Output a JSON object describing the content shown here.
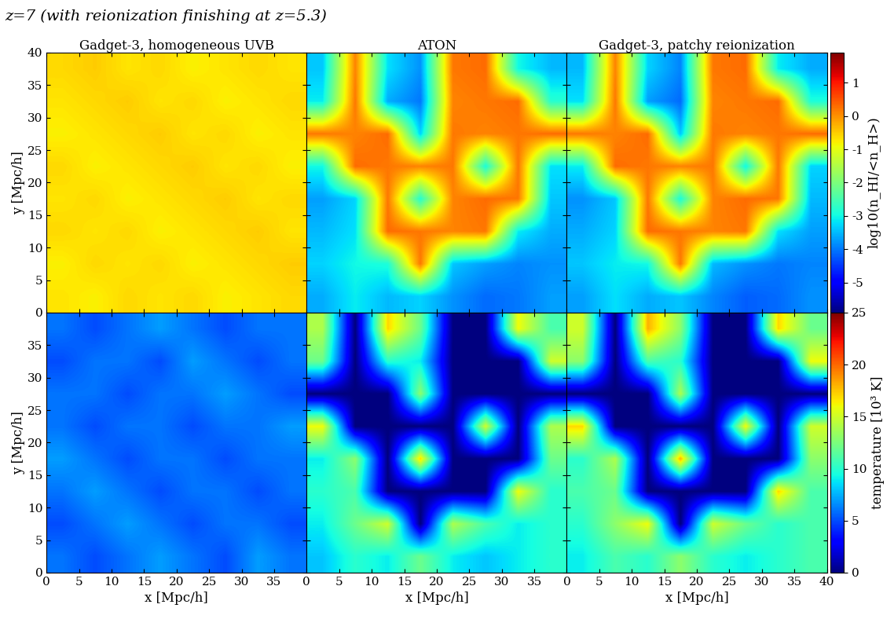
{
  "figure_title": "z=7 (with reionization finishing at z=5.3)",
  "chart_data": [
    {
      "type": "heatmap",
      "title": "Gadget-3, homogeneous UVB",
      "ylabel": "y [Mpc/h]",
      "xlim": [
        0,
        40
      ],
      "ylim": [
        0,
        40
      ],
      "xticks": [
        0,
        5,
        10,
        15,
        20,
        25,
        30,
        35
      ],
      "yticks": [
        0,
        5,
        10,
        15,
        20,
        25,
        30,
        35,
        40
      ],
      "tick_labels": "y",
      "colorbar_range": [
        -5.9,
        1.9
      ],
      "cells": [
        [
          -0.6,
          -0.5,
          -0.7,
          -0.6,
          -0.8,
          -0.7,
          -0.6,
          -0.7
        ],
        [
          -0.7,
          -0.6,
          -0.5,
          -0.7,
          -0.6,
          -0.8,
          -0.7,
          -0.6
        ],
        [
          -0.8,
          -0.7,
          -0.6,
          -0.5,
          -0.7,
          -0.6,
          -0.8,
          -0.7
        ],
        [
          -0.6,
          -0.8,
          -0.7,
          -0.6,
          -0.5,
          -0.7,
          -0.6,
          -0.8
        ],
        [
          -0.7,
          -0.6,
          -0.8,
          -0.7,
          -0.6,
          -0.5,
          -0.7,
          -0.6
        ],
        [
          -0.6,
          -0.7,
          -0.6,
          -0.8,
          -0.7,
          -0.6,
          -0.5,
          -0.7
        ],
        [
          -0.8,
          -0.6,
          -0.7,
          -0.6,
          -0.8,
          -0.7,
          -0.6,
          -0.5
        ],
        [
          -0.7,
          -0.8,
          -0.6,
          -0.7,
          -0.6,
          -0.8,
          -0.7,
          -0.6
        ]
      ]
    },
    {
      "type": "heatmap",
      "title": "ATON",
      "xlim": [
        0,
        40
      ],
      "ylim": [
        0,
        40
      ],
      "xticks": [
        0,
        5,
        10,
        15,
        20,
        25,
        30,
        35
      ],
      "yticks": [
        0,
        5,
        10,
        15,
        20,
        25,
        30,
        35,
        40
      ],
      "tick_labels": false,
      "colorbar_range": [
        -5.9,
        1.9
      ],
      "cells": [
        [
          -3.4,
          0.1,
          -3.2,
          -3.8,
          0.2,
          0.3,
          -3.0,
          -3.5
        ],
        [
          -3.1,
          0.2,
          -3.6,
          -4.0,
          0.1,
          0.2,
          0.3,
          -2.8
        ],
        [
          0.2,
          0.1,
          0.3,
          -3.3,
          0.2,
          0.1,
          0.2,
          0.3
        ],
        [
          -3.0,
          0.3,
          0.2,
          0.1,
          0.2,
          -2.9,
          0.2,
          -3.2
        ],
        [
          -3.7,
          -3.3,
          0.2,
          -2.8,
          0.1,
          0.3,
          0.2,
          -3.4
        ],
        [
          -3.5,
          -3.2,
          0.3,
          0.2,
          0.1,
          0.2,
          -3.1,
          -3.6
        ],
        [
          -3.3,
          -3.0,
          -2.9,
          0.2,
          -3.4,
          -3.7,
          -3.9,
          -3.8
        ],
        [
          -3.6,
          -3.1,
          -3.5,
          -3.3,
          -3.8,
          -4.1,
          -4.0,
          -3.7
        ]
      ]
    },
    {
      "type": "heatmap",
      "title": "Gadget-3, patchy reionization",
      "xlim": [
        0,
        40
      ],
      "ylim": [
        0,
        40
      ],
      "xticks": [
        0,
        5,
        10,
        15,
        20,
        25,
        30,
        35,
        40
      ],
      "yticks": [
        0,
        5,
        10,
        15,
        20,
        25,
        30,
        35,
        40
      ],
      "tick_labels": false,
      "colorbar_range": [
        -5.9,
        1.9
      ],
      "colorbar_label": "log10(n_HI/<n_H>)",
      "colorbar_ticks": [
        1,
        0,
        -1,
        -2,
        -3,
        -4,
        -5
      ],
      "cells": [
        [
          -3.5,
          0.1,
          -3.3,
          -3.9,
          0.2,
          0.3,
          -3.1,
          -3.6
        ],
        [
          -3.2,
          0.2,
          -3.7,
          -4.1,
          0.1,
          0.2,
          0.3,
          -2.9
        ],
        [
          0.2,
          0.1,
          0.3,
          -3.4,
          0.2,
          0.1,
          0.2,
          0.3
        ],
        [
          -3.1,
          0.3,
          0.2,
          0.1,
          0.2,
          -3.0,
          0.2,
          -3.3
        ],
        [
          -3.8,
          -3.4,
          0.2,
          -2.9,
          0.1,
          0.3,
          0.2,
          -3.5
        ],
        [
          -3.6,
          -3.3,
          0.3,
          0.2,
          0.1,
          0.2,
          -3.2,
          -3.7
        ],
        [
          -3.4,
          -3.1,
          -3.0,
          0.2,
          -3.5,
          -3.8,
          -4.0,
          -3.9
        ],
        [
          -3.7,
          -3.2,
          -3.6,
          -3.4,
          -3.9,
          -4.2,
          -4.1,
          -3.8
        ]
      ]
    },
    {
      "type": "heatmap",
      "xlabel": "x [Mpc/h]",
      "ylabel": "y [Mpc/h]",
      "xlim": [
        0,
        40
      ],
      "ylim": [
        0,
        40
      ],
      "xticks": [
        0,
        5,
        10,
        15,
        20,
        25,
        30,
        35
      ],
      "yticks": [
        0,
        5,
        10,
        15,
        20,
        25,
        30,
        35
      ],
      "tick_labels": true,
      "colorbar_range": [
        0,
        25
      ],
      "cells": [
        [
          6,
          5,
          6,
          7,
          6,
          5,
          6,
          6
        ],
        [
          5,
          6,
          6,
          5,
          7,
          6,
          5,
          6
        ],
        [
          6,
          6,
          5,
          6,
          6,
          7,
          6,
          5
        ],
        [
          6,
          5,
          6,
          6,
          5,
          6,
          6,
          7
        ],
        [
          7,
          6,
          5,
          6,
          6,
          5,
          6,
          6
        ],
        [
          6,
          7,
          6,
          5,
          6,
          6,
          5,
          6
        ],
        [
          5,
          6,
          7,
          6,
          5,
          6,
          6,
          5
        ],
        [
          6,
          5,
          6,
          7,
          6,
          5,
          7,
          6
        ]
      ]
    },
    {
      "type": "heatmap",
      "xlabel": "x [Mpc/h]",
      "xlim": [
        0,
        40
      ],
      "ylim": [
        0,
        40
      ],
      "xticks": [
        0,
        5,
        10,
        15,
        20,
        25,
        30,
        35
      ],
      "yticks": [
        0,
        5,
        10,
        15,
        20,
        25,
        30,
        35
      ],
      "tick_labels": "x",
      "colorbar_range": [
        0,
        25
      ],
      "cells": [
        [
          14,
          0,
          17,
          12,
          0,
          0,
          16,
          11
        ],
        [
          12,
          0,
          10,
          9,
          0,
          0,
          0,
          15
        ],
        [
          0,
          0,
          0,
          13,
          0,
          0,
          0,
          0
        ],
        [
          16,
          0,
          0,
          0,
          0,
          15,
          0,
          14
        ],
        [
          9,
          13,
          0,
          17,
          0,
          0,
          0,
          12
        ],
        [
          10,
          11,
          0,
          0,
          0,
          0,
          16,
          10
        ],
        [
          9,
          12,
          15,
          0,
          14,
          11,
          9,
          10
        ],
        [
          8,
          10,
          9,
          12,
          9,
          8,
          9,
          10
        ]
      ]
    },
    {
      "type": "heatmap",
      "xlabel": "x [Mpc/h]",
      "xlim": [
        0,
        40
      ],
      "ylim": [
        0,
        40
      ],
      "xticks": [
        0,
        5,
        10,
        15,
        20,
        25,
        30,
        35,
        40
      ],
      "yticks": [
        0,
        5,
        10,
        15,
        20,
        25,
        30,
        35
      ],
      "tick_labels": "x",
      "colorbar_range": [
        0,
        25
      ],
      "colorbar_label": "temperature [10³ K]",
      "colorbar_ticks": [
        0,
        5,
        10,
        15,
        20,
        25
      ],
      "cells": [
        [
          15,
          0,
          18,
          13,
          0,
          0,
          17,
          12
        ],
        [
          13,
          0,
          11,
          10,
          0,
          0,
          0,
          16
        ],
        [
          0,
          0,
          0,
          14,
          0,
          0,
          0,
          0
        ],
        [
          17,
          0,
          0,
          0,
          0,
          16,
          0,
          15
        ],
        [
          10,
          14,
          0,
          18,
          0,
          0,
          0,
          13
        ],
        [
          11,
          12,
          0,
          0,
          0,
          0,
          17,
          11
        ],
        [
          10,
          13,
          16,
          0,
          15,
          12,
          10,
          11
        ],
        [
          9,
          11,
          10,
          13,
          10,
          9,
          10,
          11
        ]
      ]
    }
  ]
}
